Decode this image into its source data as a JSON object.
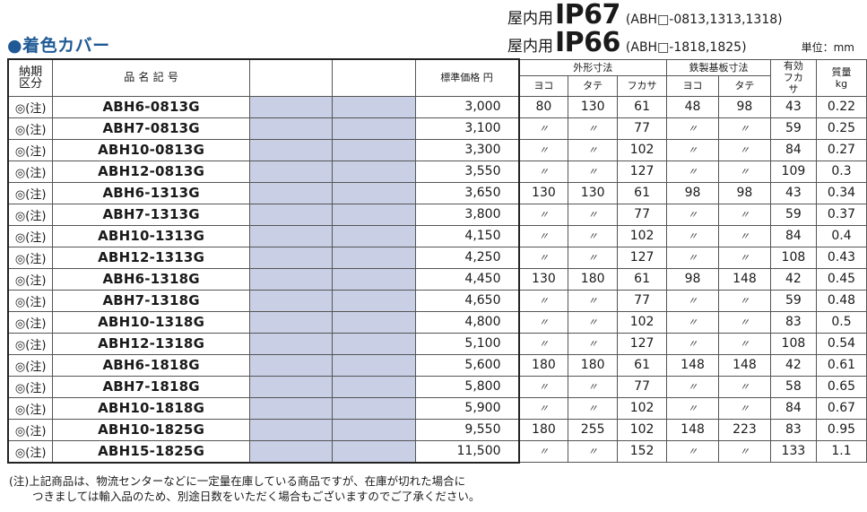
{
  "section_title": "●着色カバー",
  "ip_lines": [
    {
      "label": "屋内用",
      "code": "IP67",
      "models": "(ABH□-0813,1313,1318)"
    },
    {
      "label": "屋内用",
      "code": "IP66",
      "models": "(ABH□-1818,1825)"
    }
  ],
  "unit_note": "単位：mm",
  "headers": {
    "delivery": "納期区分",
    "name": "品 名 記 号",
    "price": "標準価格 円",
    "outer": "外形寸法",
    "plate": "鉄製基板寸法",
    "effective": "有効フカサ",
    "mass": "質量kg",
    "yoko": "ヨコ",
    "tate": "タテ",
    "fukasa": "フカサ"
  },
  "rows": [
    {
      "ku": "◎(注)",
      "name": "ABH6-0813G",
      "price": "3,000",
      "w": "80",
      "h": "130",
      "d": "61",
      "pw": "48",
      "ph": "98",
      "eff": "43",
      "mass": "0.22"
    },
    {
      "ku": "◎(注)",
      "name": "ABH7-0813G",
      "price": "3,100",
      "w": "〃",
      "h": "〃",
      "d": "77",
      "pw": "〃",
      "ph": "〃",
      "eff": "59",
      "mass": "0.25"
    },
    {
      "ku": "◎(注)",
      "name": "ABH10-0813G",
      "price": "3,300",
      "w": "〃",
      "h": "〃",
      "d": "102",
      "pw": "〃",
      "ph": "〃",
      "eff": "84",
      "mass": "0.27"
    },
    {
      "ku": "◎(注)",
      "name": "ABH12-0813G",
      "price": "3,550",
      "w": "〃",
      "h": "〃",
      "d": "127",
      "pw": "〃",
      "ph": "〃",
      "eff": "109",
      "mass": "0.3"
    },
    {
      "ku": "◎(注)",
      "name": "ABH6-1313G",
      "price": "3,650",
      "w": "130",
      "h": "130",
      "d": "61",
      "pw": "98",
      "ph": "98",
      "eff": "43",
      "mass": "0.34"
    },
    {
      "ku": "◎(注)",
      "name": "ABH7-1313G",
      "price": "3,800",
      "w": "〃",
      "h": "〃",
      "d": "77",
      "pw": "〃",
      "ph": "〃",
      "eff": "59",
      "mass": "0.37"
    },
    {
      "ku": "◎(注)",
      "name": "ABH10-1313G",
      "price": "4,150",
      "w": "〃",
      "h": "〃",
      "d": "102",
      "pw": "〃",
      "ph": "〃",
      "eff": "84",
      "mass": "0.4"
    },
    {
      "ku": "◎(注)",
      "name": "ABH12-1313G",
      "price": "4,250",
      "w": "〃",
      "h": "〃",
      "d": "127",
      "pw": "〃",
      "ph": "〃",
      "eff": "108",
      "mass": "0.43"
    },
    {
      "ku": "◎(注)",
      "name": "ABH6-1318G",
      "price": "4,450",
      "w": "130",
      "h": "180",
      "d": "61",
      "pw": "98",
      "ph": "148",
      "eff": "42",
      "mass": "0.45"
    },
    {
      "ku": "◎(注)",
      "name": "ABH7-1318G",
      "price": "4,650",
      "w": "〃",
      "h": "〃",
      "d": "77",
      "pw": "〃",
      "ph": "〃",
      "eff": "59",
      "mass": "0.48"
    },
    {
      "ku": "◎(注)",
      "name": "ABH10-1318G",
      "price": "4,800",
      "w": "〃",
      "h": "〃",
      "d": "102",
      "pw": "〃",
      "ph": "〃",
      "eff": "83",
      "mass": "0.5"
    },
    {
      "ku": "◎(注)",
      "name": "ABH12-1318G",
      "price": "5,100",
      "w": "〃",
      "h": "〃",
      "d": "127",
      "pw": "〃",
      "ph": "〃",
      "eff": "108",
      "mass": "0.54"
    },
    {
      "ku": "◎(注)",
      "name": "ABH6-1818G",
      "price": "5,600",
      "w": "180",
      "h": "180",
      "d": "61",
      "pw": "148",
      "ph": "148",
      "eff": "42",
      "mass": "0.61"
    },
    {
      "ku": "◎(注)",
      "name": "ABH7-1818G",
      "price": "5,800",
      "w": "〃",
      "h": "〃",
      "d": "77",
      "pw": "〃",
      "ph": "〃",
      "eff": "58",
      "mass": "0.65"
    },
    {
      "ku": "◎(注)",
      "name": "ABH10-1818G",
      "price": "5,900",
      "w": "〃",
      "h": "〃",
      "d": "102",
      "pw": "〃",
      "ph": "〃",
      "eff": "84",
      "mass": "0.67"
    },
    {
      "ku": "◎(注)",
      "name": "ABH10-1825G",
      "price": "9,550",
      "w": "180",
      "h": "255",
      "d": "102",
      "pw": "148",
      "ph": "223",
      "eff": "83",
      "mass": "0.95"
    },
    {
      "ku": "◎(注)",
      "name": "ABH15-1825G",
      "price": "11,500",
      "w": "〃",
      "h": "〃",
      "d": "152",
      "pw": "〃",
      "ph": "〃",
      "eff": "133",
      "mass": "1.1"
    }
  ],
  "footnote": [
    "(注)上記商品は、物流センターなどに一定量在庫している商品ですが、在庫が切れた場合に",
    "つきましては輸入品のため、別途日数をいただく場合もございますのでご了承ください。"
  ],
  "colors": {
    "title_blue": "#1f5a96",
    "shaded_cell": "#c9d0e6"
  }
}
